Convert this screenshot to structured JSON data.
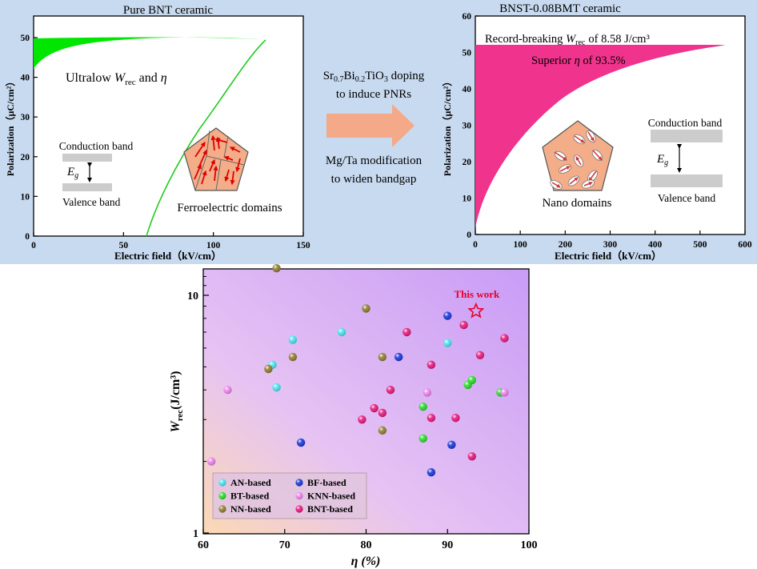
{
  "top_band": {
    "color": "#c8daf0"
  },
  "left_panel": {
    "title": "Pure BNT ceramic",
    "ylabel": "Polarization（μC/cm²）",
    "xlabel": "Electric field（kV/cm）",
    "xticks": [
      "0",
      "50",
      "100",
      "150"
    ],
    "yticks": [
      "0",
      "10",
      "20",
      "30",
      "40",
      "50"
    ],
    "text_ultralow": "Ultralow",
    "text_and": "and",
    "w_symbol": "W",
    "w_sub": "rec",
    "eta_symbol": "η",
    "conduction_band": "Conduction band",
    "valence_band": "Valence band",
    "eg_symbol": "E",
    "eg_sub": "g",
    "domain_label": "Ferroelectric domains"
  },
  "middle": {
    "line1_a": "Sr",
    "line1_b": "0.7",
    "line1_c": "Bi",
    "line1_d": "0.2",
    "line1_e": "TiO",
    "line1_f": "3",
    "line1_g": " doping",
    "line2": "to induce PNRs",
    "line3": "Mg/Ta modification",
    "line4": "to widen bandgap"
  },
  "right_panel": {
    "title": "BNST-0.08BMT ceramic",
    "ylabel": "Polarization（μC/cm²）",
    "xlabel": "Electric field（kV/cm）",
    "xticks": [
      "0",
      "100",
      "200",
      "300",
      "400",
      "500",
      "600"
    ],
    "yticks": [
      "0",
      "10",
      "20",
      "30",
      "40",
      "50",
      "60"
    ],
    "record_a": "Record-breaking",
    "record_w": "W",
    "record_sub": "rec",
    "record_b": "of 8.58 J/cm³",
    "superior_a": "Superior",
    "superior_eta": "η",
    "superior_b": "of 93.5%",
    "conduction_band": "Conduction band",
    "valence_band": "Valence band",
    "eg_symbol": "E",
    "eg_sub": "g",
    "domain_label": "Nano domains"
  },
  "colors": {
    "bnt_fill": "#00e600",
    "bnt_line": "#22cc22",
    "bnst_fill": "#f0338c",
    "bnst_line": "#ffffff",
    "arrow": "#f4a988",
    "domain_fill": "#f3ad88",
    "domain_arrow": "#e00000",
    "nano_arrow": "#cc3a3a",
    "band_fill": "#cccccc",
    "this_work": "#e8002a",
    "AN-based": "#44e4f0",
    "BF-based": "#1030d8",
    "BT-based": "#22dd22",
    "KNN-based": "#ee80ee",
    "NN-based": "#8c7a2a",
    "BNT-based": "#e8107a"
  },
  "chart_data": {
    "type": "scatter",
    "title": "",
    "xlabel": "η (%)",
    "ylabel_symbol": "W",
    "ylabel_sub": "rec",
    "ylabel_unit": "(J/cm³)",
    "xlim": [
      60,
      100
    ],
    "ylim": [
      1,
      13
    ],
    "yscale": "log",
    "xticks": [
      "60",
      "70",
      "80",
      "90",
      "100"
    ],
    "yticks": [
      "1",
      "10"
    ],
    "this_work_label": "This work",
    "this_work": {
      "x": 93.5,
      "y": 8.58
    },
    "legend_placement": "bottom-left",
    "legend_order": [
      "AN-based",
      "BF-based",
      "BT-based",
      "KNN-based",
      "NN-based",
      "BNT-based"
    ],
    "series": [
      {
        "name": "AN-based",
        "points": [
          [
            68.5,
            5.1
          ],
          [
            69,
            4.1
          ],
          [
            71,
            6.5
          ],
          [
            77,
            7.0
          ],
          [
            90,
            6.3
          ]
        ]
      },
      {
        "name": "BF-based",
        "points": [
          [
            72,
            2.4
          ],
          [
            84,
            5.5
          ],
          [
            88,
            1.8
          ],
          [
            90,
            8.2
          ],
          [
            90.5,
            2.35
          ]
        ]
      },
      {
        "name": "BT-based",
        "points": [
          [
            87,
            3.4
          ],
          [
            87,
            2.5
          ],
          [
            92.5,
            4.2
          ],
          [
            93,
            4.4
          ],
          [
            96.5,
            3.9
          ]
        ]
      },
      {
        "name": "KNN-based",
        "points": [
          [
            61,
            2.0
          ],
          [
            63,
            4.0
          ],
          [
            87.5,
            3.9
          ],
          [
            97,
            3.9
          ]
        ]
      },
      {
        "name": "NN-based",
        "points": [
          [
            68,
            4.9
          ],
          [
            69,
            13.0
          ],
          [
            71,
            5.5
          ],
          [
            80,
            8.8
          ],
          [
            82,
            5.5
          ],
          [
            82,
            2.7
          ]
        ]
      },
      {
        "name": "BNT-based",
        "points": [
          [
            79.5,
            3.0
          ],
          [
            81,
            3.35
          ],
          [
            82,
            3.2
          ],
          [
            83,
            4.0
          ],
          [
            85,
            7.0
          ],
          [
            88,
            5.1
          ],
          [
            88,
            3.05
          ],
          [
            91,
            3.05
          ],
          [
            92,
            7.5
          ],
          [
            93,
            2.1
          ],
          [
            94,
            5.6
          ],
          [
            97,
            6.6
          ]
        ]
      }
    ]
  }
}
